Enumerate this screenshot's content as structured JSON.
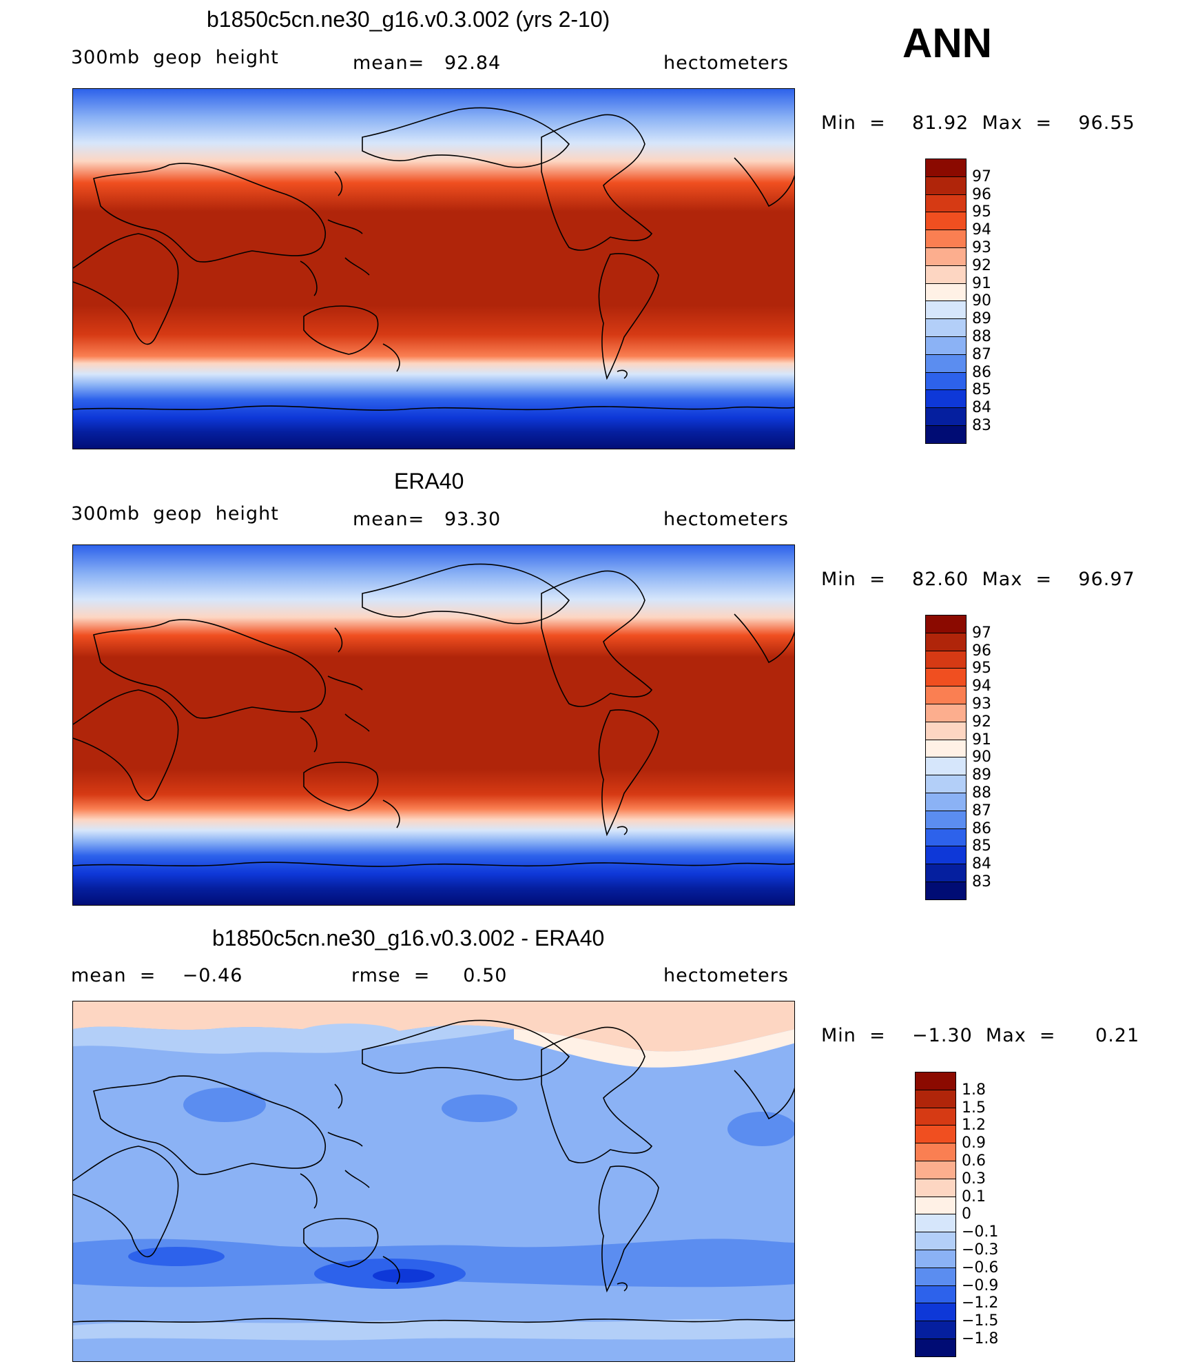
{
  "season": "ANN",
  "panels": [
    {
      "title": "b1850c5cn.ne30_g16.v0.3.002 (yrs 2-10)",
      "left_label": "300mb  geop  height",
      "center_label": "mean=   92.84",
      "right_label": "hectometers",
      "minmax": "Min  =    81.92  Max  =    96.55",
      "legend_labels": [
        "97",
        "96",
        "95",
        "94",
        "93",
        "92",
        "91",
        "90",
        "89",
        "88",
        "87",
        "86",
        "85",
        "84",
        "83"
      ],
      "legend_colors": [
        "#8b0a00",
        "#b0250a",
        "#d63a14",
        "#f04f20",
        "#fa7f52",
        "#fcae8e",
        "#fdd6c2",
        "#fff1e6",
        "#d6e6fb",
        "#b3cff8",
        "#8bb2f5",
        "#5b8df0",
        "#2d62eb",
        "#0e38d8",
        "#051f9f",
        "#000c74"
      ]
    },
    {
      "title": "ERA40",
      "left_label": "300mb  geop  height",
      "center_label": "mean=   93.30",
      "right_label": "hectometers",
      "minmax": "Min  =    82.60  Max  =    96.97",
      "legend_labels": [
        "97",
        "96",
        "95",
        "94",
        "93",
        "92",
        "91",
        "90",
        "89",
        "88",
        "87",
        "86",
        "85",
        "84",
        "83"
      ],
      "legend_colors": [
        "#8b0a00",
        "#b0250a",
        "#d63a14",
        "#f04f20",
        "#fa7f52",
        "#fcae8e",
        "#fdd6c2",
        "#fff1e6",
        "#d6e6fb",
        "#b3cff8",
        "#8bb2f5",
        "#5b8df0",
        "#2d62eb",
        "#0e38d8",
        "#051f9f",
        "#000c74"
      ]
    },
    {
      "title": "b1850c5cn.ne30_g16.v0.3.002 - ERA40",
      "left_label": "mean  =    −0.46",
      "center_label": "rmse  =     0.50",
      "right_label": "hectometers",
      "minmax": "Min  =    −1.30  Max  =      0.21",
      "legend_labels": [
        "1.8",
        "1.5",
        "1.2",
        "0.9",
        "0.6",
        "0.3",
        "0.1",
        "0",
        "−0.1",
        "−0.3",
        "−0.6",
        "−0.9",
        "−1.2",
        "−1.5",
        "−1.8"
      ],
      "legend_colors": [
        "#8b0a00",
        "#b0250a",
        "#d63a14",
        "#f04f20",
        "#fa7f52",
        "#fcae8e",
        "#fdd6c2",
        "#fff1e6",
        "#d6e6fb",
        "#b3cff8",
        "#8bb2f5",
        "#5b8df0",
        "#2d62eb",
        "#0e38d8",
        "#051f9f",
        "#000c74"
      ]
    }
  ],
  "field_colors": {
    "vlow": "#000c74",
    "low1": "#051f9f",
    "low2": "#0e38d8",
    "low3": "#2d62eb",
    "low4": "#5b8df0",
    "low5": "#8bb2f5",
    "low6": "#b3cff8",
    "neutral_lo": "#d6e6fb",
    "neutral_hi": "#fff1e6",
    "hi1": "#fdd6c2",
    "hi2": "#fcae8e",
    "hi3": "#fa7f52",
    "hi4": "#f04f20",
    "hi5": "#d63a14",
    "hi6": "#b0250a",
    "vhigh": "#8b0a00"
  }
}
